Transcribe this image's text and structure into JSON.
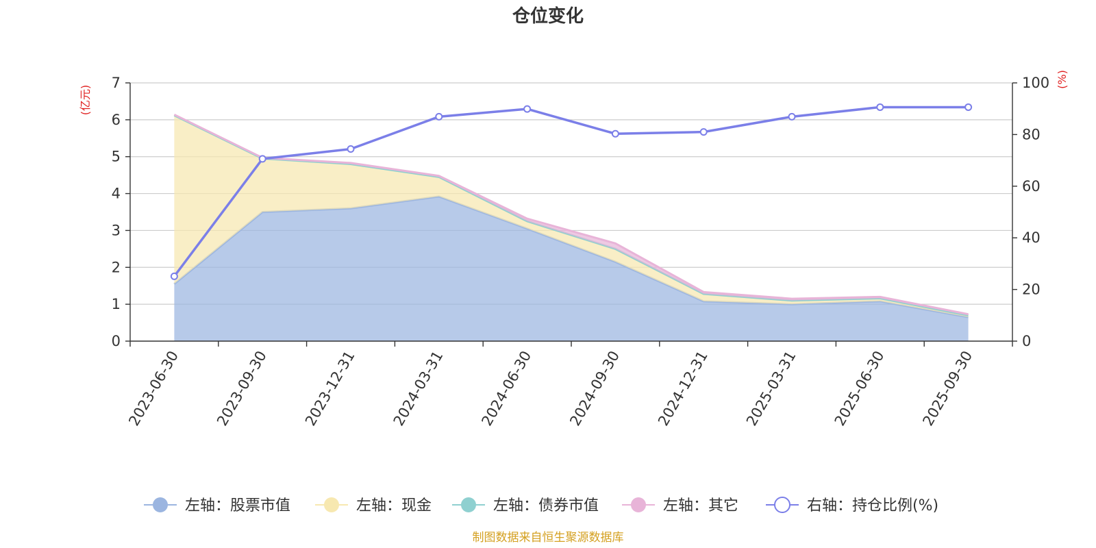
{
  "chart_data": {
    "type": "area",
    "title": "仓位变化",
    "categories": [
      "2023-06-30",
      "2023-09-30",
      "2023-12-31",
      "2024-03-31",
      "2024-06-30",
      "2024-09-30",
      "2024-12-31",
      "2025-03-31",
      "2025-06-30",
      "2025-09-30"
    ],
    "left_axis": {
      "unit": "(亿元)",
      "ylim": [
        0,
        7
      ],
      "ticks": [
        0,
        1,
        2,
        3,
        4,
        5,
        6,
        7
      ]
    },
    "right_axis": {
      "unit": "(%)",
      "ylim": [
        0,
        100
      ],
      "ticks": [
        0,
        20,
        40,
        60,
        80,
        100
      ]
    },
    "series": [
      {
        "name": "左轴：股票市值",
        "type": "area",
        "axis": "left",
        "stack": true,
        "color": "#9bb5e0",
        "values": [
          1.55,
          3.5,
          3.6,
          3.92,
          3.05,
          2.15,
          1.08,
          1.0,
          1.08,
          0.65
        ]
      },
      {
        "name": "左轴：现金",
        "type": "area",
        "axis": "left",
        "stack": true,
        "color": "#f7e8b0",
        "values": [
          4.57,
          1.45,
          1.2,
          0.53,
          0.2,
          0.35,
          0.2,
          0.1,
          0.08,
          0.05
        ]
      },
      {
        "name": "左轴：债券市值",
        "type": "area",
        "axis": "left",
        "stack": true,
        "color": "#8fd0d0",
        "values": [
          0,
          0,
          0,
          0,
          0,
          0,
          0,
          0,
          0,
          0
        ]
      },
      {
        "name": "左轴：其它",
        "type": "area",
        "axis": "left",
        "stack": true,
        "color": "#e8b4d8",
        "values": [
          0.02,
          0.02,
          0.03,
          0.03,
          0.07,
          0.15,
          0.05,
          0.05,
          0.04,
          0.03
        ]
      },
      {
        "name": "右轴：持仓比例(%)",
        "type": "line",
        "axis": "right",
        "color": "#7b7fe8",
        "values": [
          25.1,
          70.6,
          74.4,
          86.9,
          89.9,
          80.3,
          81.0,
          86.9,
          90.6,
          90.6
        ]
      }
    ],
    "legend_position": "bottom",
    "source": "制图数据来自恒生聚源数据库"
  }
}
